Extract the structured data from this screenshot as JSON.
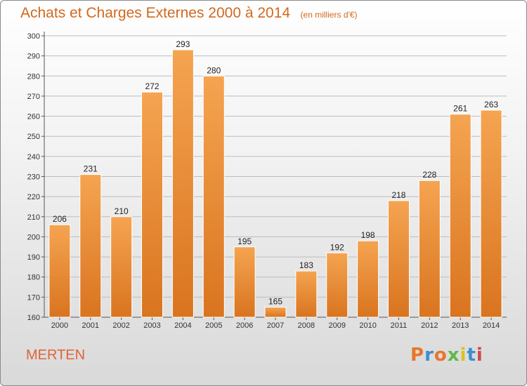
{
  "title": "Achats et Charges Externes 2000 à 2014",
  "unit": "(en milliers d'€)",
  "commune": "MERTEN",
  "brand": "Proxiti",
  "colors": {
    "title": "#d2691e",
    "bar_top": "#f5a451",
    "bar_bottom": "#d9741f",
    "commune": "#e0643a"
  },
  "chart_data": {
    "type": "bar",
    "categories": [
      "2000",
      "2001",
      "2002",
      "2003",
      "2004",
      "2005",
      "2006",
      "2007",
      "2008",
      "2009",
      "2010",
      "2011",
      "2012",
      "2013",
      "2014"
    ],
    "values": [
      206,
      231,
      210,
      272,
      293,
      280,
      195,
      165,
      183,
      192,
      198,
      218,
      228,
      261,
      263
    ],
    "ylim": [
      160,
      300
    ],
    "yticks": [
      160,
      170,
      180,
      190,
      200,
      210,
      220,
      230,
      240,
      250,
      260,
      270,
      280,
      290,
      300
    ],
    "grid": true,
    "data_labels": true
  }
}
